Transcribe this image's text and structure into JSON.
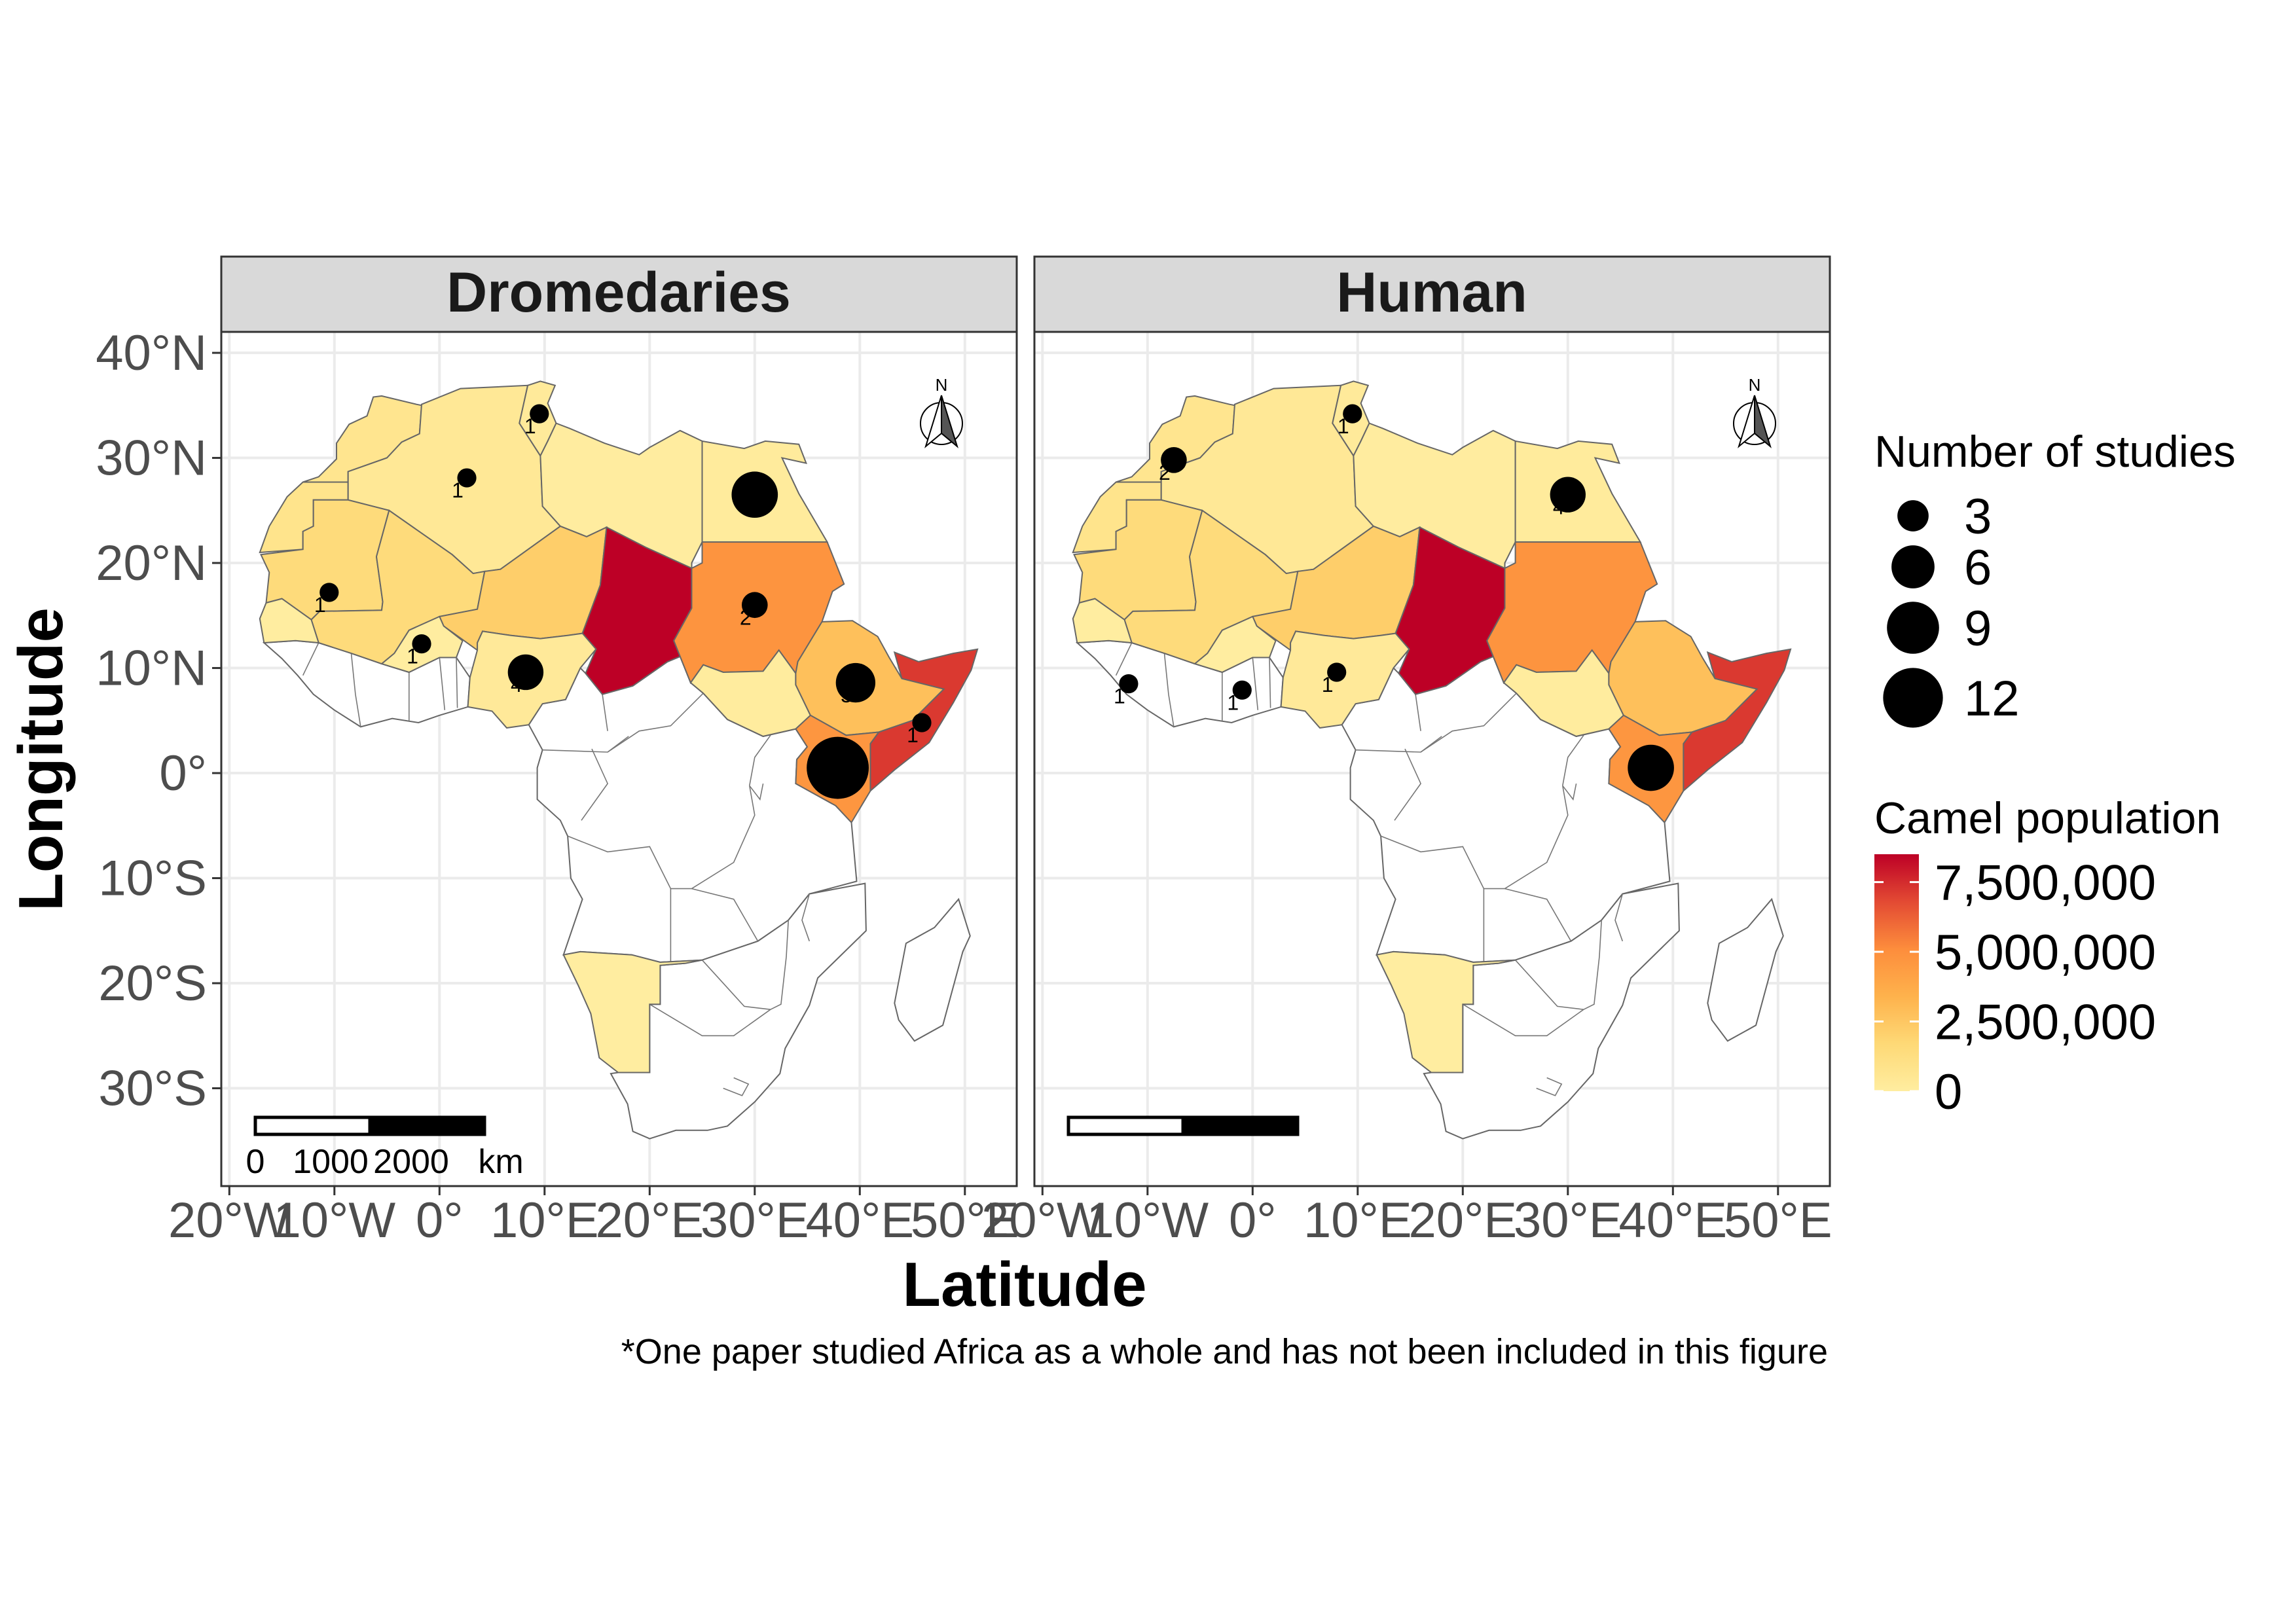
{
  "panels": [
    {
      "title": "Dromedaries",
      "studies": [
        {
          "country": "Tunisia",
          "lon": 9.5,
          "lat": 34.2,
          "count": 1
        },
        {
          "country": "Algeria",
          "lon": 2.6,
          "lat": 28.1,
          "count": 1
        },
        {
          "country": "Mauritania",
          "lon": -10.5,
          "lat": 17.2,
          "count": 1
        },
        {
          "country": "Burkina Faso",
          "lon": -1.7,
          "lat": 12.3,
          "count": 1
        },
        {
          "country": "Nigeria",
          "lon": 8.2,
          "lat": 9.6,
          "count": 4
        },
        {
          "country": "Egypt",
          "lon": 30.0,
          "lat": 26.5,
          "count": 7
        },
        {
          "country": "Sudan",
          "lon": 30.0,
          "lat": 16.0,
          "count": 2
        },
        {
          "country": "Ethiopia",
          "lon": 39.6,
          "lat": 8.6,
          "count": 5
        },
        {
          "country": "Kenya",
          "lon": 37.9,
          "lat": 0.5,
          "count": 13
        },
        {
          "country": "Somalia",
          "lon": 45.9,
          "lat": 4.8,
          "count": 1
        }
      ]
    },
    {
      "title": "Human",
      "studies": [
        {
          "country": "Tunisia",
          "lon": 9.5,
          "lat": 34.2,
          "count": 1
        },
        {
          "country": "Morocco",
          "lon": -7.5,
          "lat": 29.8,
          "count": 2
        },
        {
          "country": "Egypt",
          "lon": 30.0,
          "lat": 26.5,
          "count": 4
        },
        {
          "country": "Sierra Leone",
          "lon": -11.8,
          "lat": 8.5,
          "count": 1
        },
        {
          "country": "Ghana",
          "lon": -1.0,
          "lat": 7.9,
          "count": 1
        },
        {
          "country": "Nigeria",
          "lon": 8.0,
          "lat": 9.6,
          "count": 1
        },
        {
          "country": "Kenya",
          "lon": 37.9,
          "lat": 0.5,
          "count": 7
        }
      ]
    }
  ],
  "chart_data": {
    "type": "map",
    "facets": [
      "Dromedaries",
      "Human"
    ],
    "camel_population": [
      {
        "country": "Chad",
        "value": 8500000
      },
      {
        "country": "Somalia",
        "value": 7200000
      },
      {
        "country": "Sudan",
        "value": 4800000
      },
      {
        "country": "Kenya",
        "value": 4700000
      },
      {
        "country": "Ethiopia",
        "value": 2800000
      },
      {
        "country": "Niger",
        "value": 2200000
      },
      {
        "country": "Mali",
        "value": 1500000
      },
      {
        "country": "Mauritania",
        "value": 1500000
      },
      {
        "country": "Western Sahara",
        "value": 800000
      },
      {
        "country": "Morocco",
        "value": 700000
      },
      {
        "country": "Algeria",
        "value": 400000
      },
      {
        "country": "Nigeria",
        "value": 300000
      },
      {
        "country": "Tunisia",
        "value": 250000
      },
      {
        "country": "Egypt",
        "value": 150000
      },
      {
        "country": "Libya",
        "value": 60000
      },
      {
        "country": "South Sudan",
        "value": 100000
      },
      {
        "country": "Senegal",
        "value": 20000
      },
      {
        "country": "Burkina Faso",
        "value": 20000
      },
      {
        "country": "Namibia",
        "value": 5000
      }
    ],
    "xlim": [
      -20,
      52
    ],
    "ylim": [
      -38,
      41
    ]
  },
  "axes": {
    "xlabel": "Latitude",
    "ylabel": "Longitude",
    "x_ticks": [
      {
        "value": -20,
        "label": "20°W"
      },
      {
        "value": -10,
        "label": "10°W"
      },
      {
        "value": 0,
        "label": "0°"
      },
      {
        "value": 10,
        "label": "10°E"
      },
      {
        "value": 20,
        "label": "20°E"
      },
      {
        "value": 30,
        "label": "30°E"
      },
      {
        "value": 40,
        "label": "40°E"
      },
      {
        "value": 50,
        "label": "50°E"
      }
    ],
    "y_ticks": [
      {
        "value": 40,
        "label": "40°N"
      },
      {
        "value": 30,
        "label": "30°N"
      },
      {
        "value": 20,
        "label": "20°N"
      },
      {
        "value": 10,
        "label": "10°N"
      },
      {
        "value": 0,
        "label": "0°"
      },
      {
        "value": -10,
        "label": "10°S"
      },
      {
        "value": -20,
        "label": "20°S"
      },
      {
        "value": -30,
        "label": "30°S"
      }
    ]
  },
  "legend_size": {
    "title": "Number of studies",
    "entries": [
      {
        "value": 3,
        "label": "3"
      },
      {
        "value": 6,
        "label": "6"
      },
      {
        "value": 9,
        "label": "9"
      },
      {
        "value": 12,
        "label": "12"
      }
    ]
  },
  "legend_color": {
    "title": "Camel population",
    "labels": [
      {
        "value": 7500000,
        "label": "7,500,000"
      },
      {
        "value": 5000000,
        "label": "5,000,000"
      },
      {
        "value": 2500000,
        "label": "2,500,000"
      },
      {
        "value": 0,
        "label": "0"
      }
    ],
    "max": 8500000,
    "colors": [
      "#ffeda0",
      "#fed976",
      "#feb24c",
      "#fd8d3c",
      "#e34a33",
      "#bd0026"
    ]
  },
  "scale_bar": {
    "labels": [
      "0",
      "1000",
      "2000",
      "km"
    ]
  },
  "north_arrow": {
    "label": "N"
  },
  "caption": "*One paper studied Africa as a whole and has not been included in this figure"
}
